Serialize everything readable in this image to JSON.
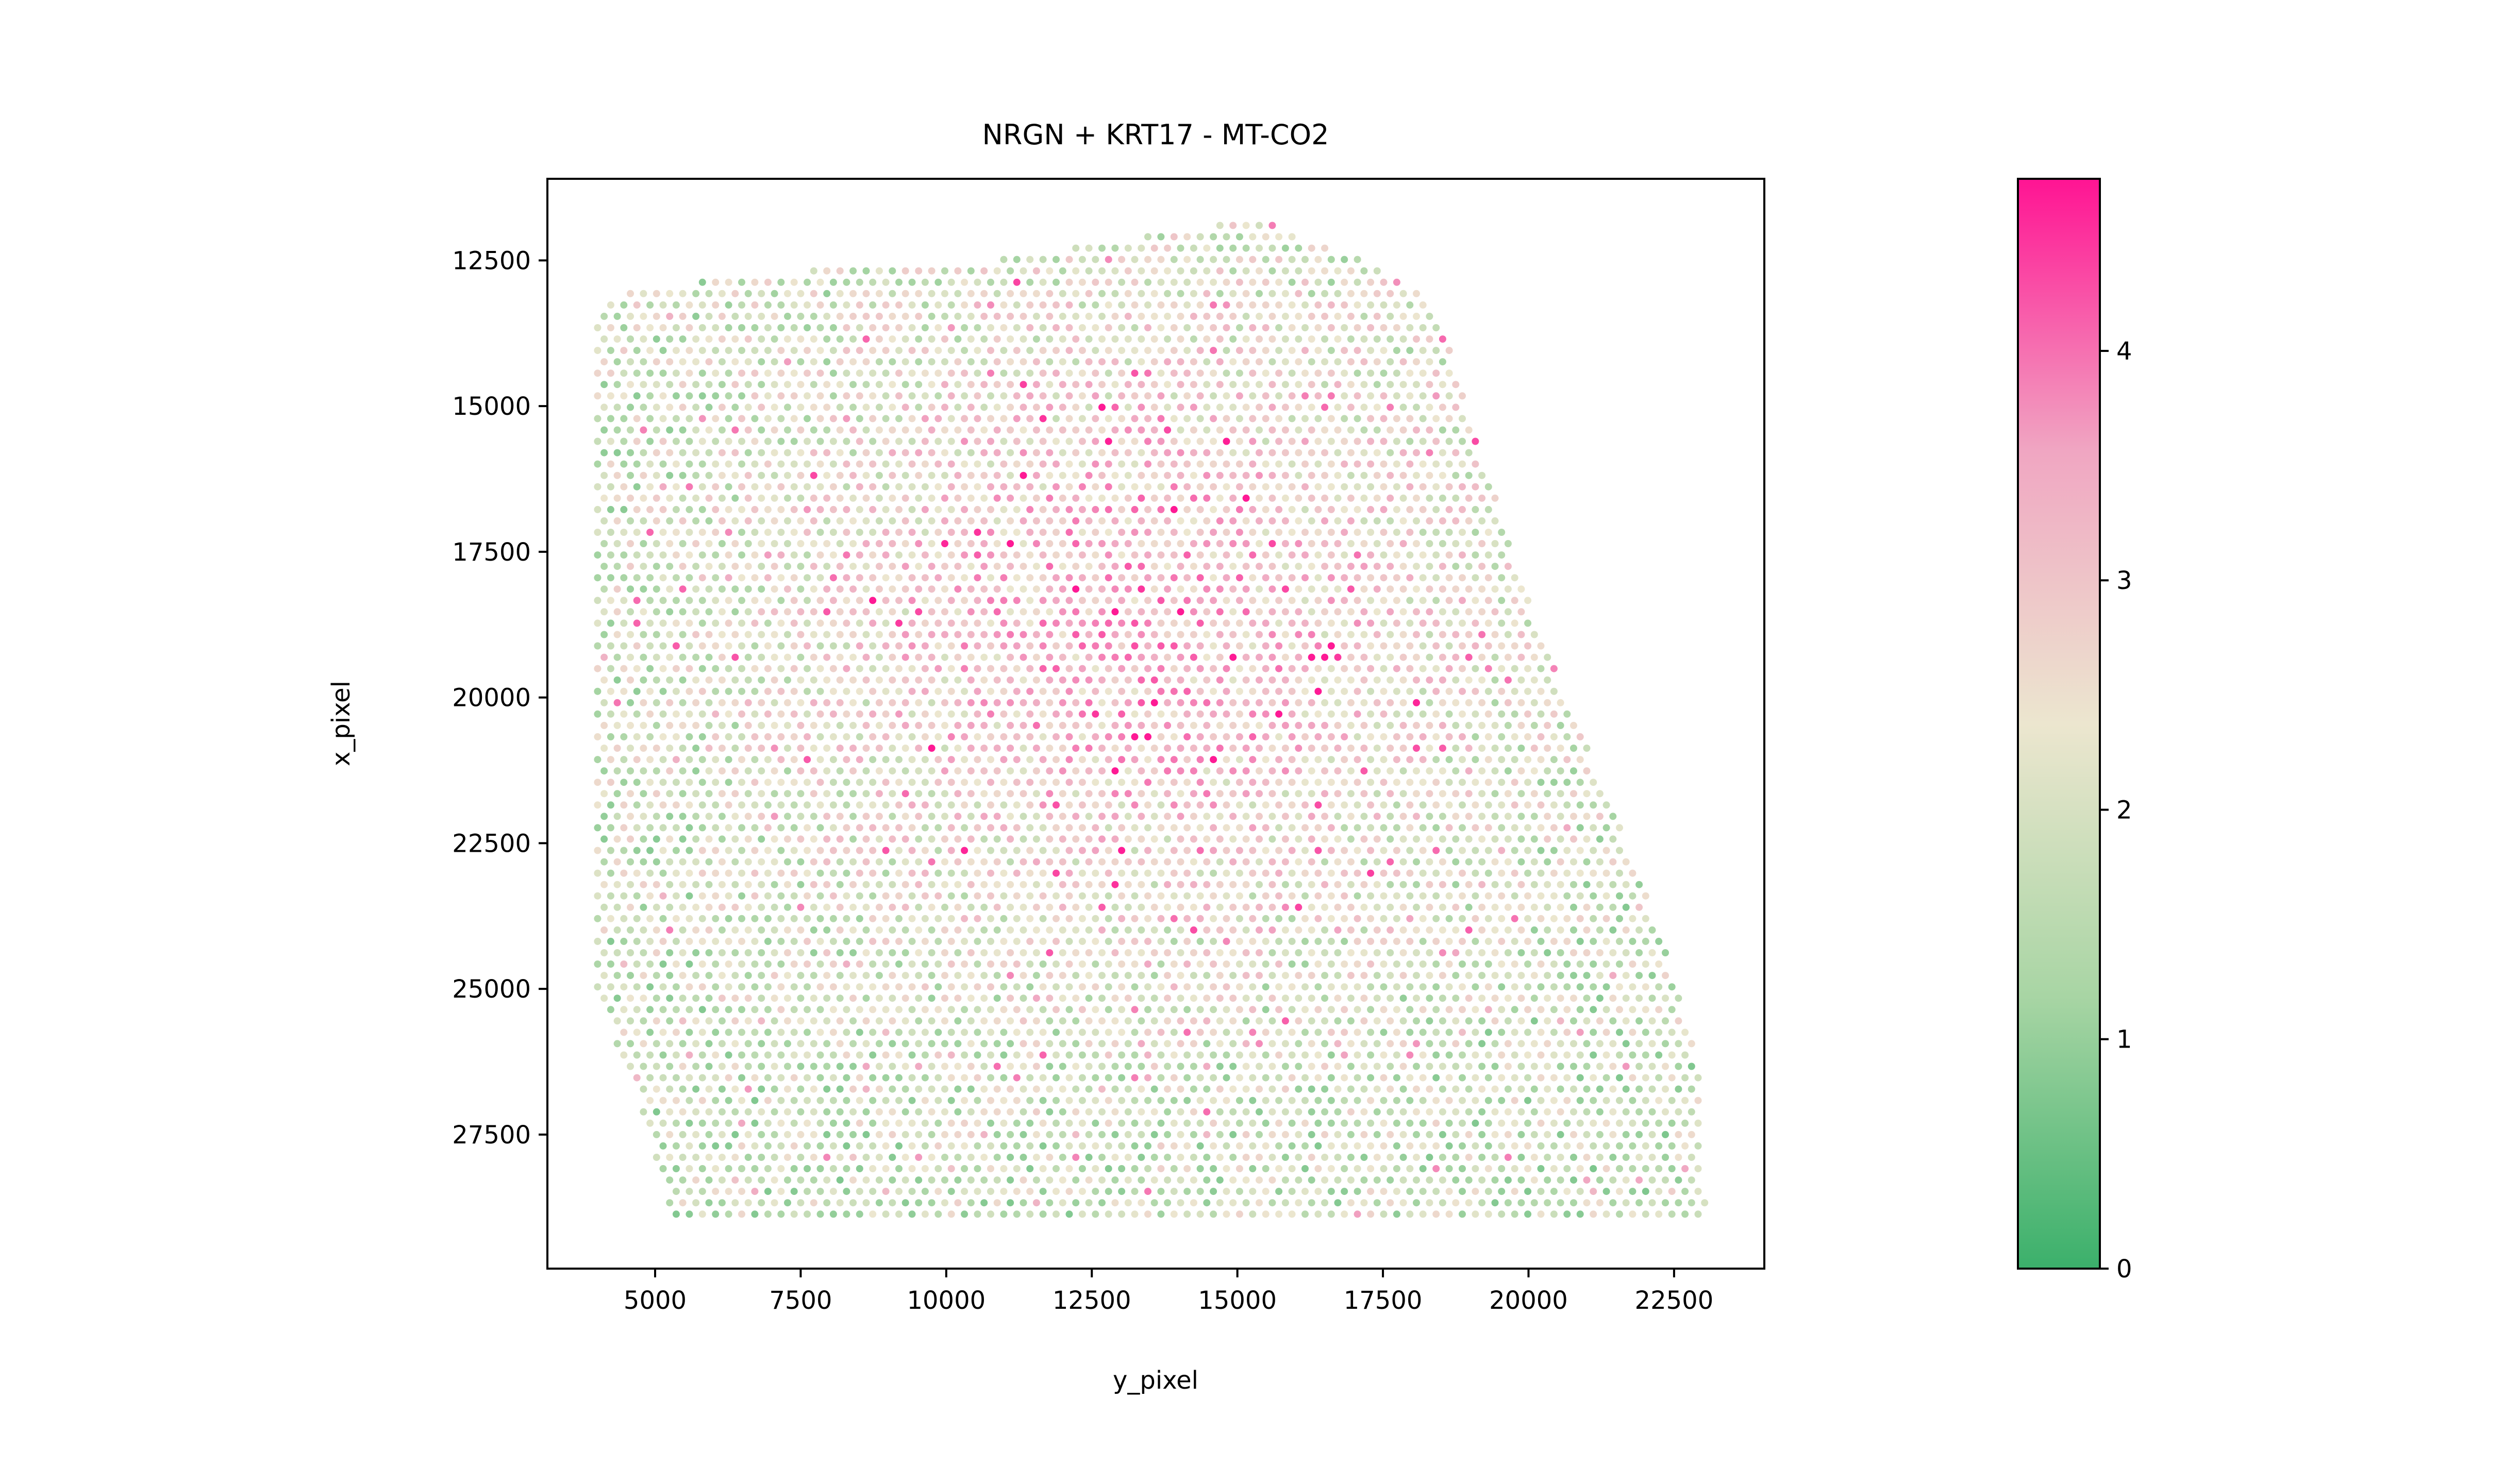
{
  "chart_data": {
    "type": "scatter",
    "title": "NRGN + KRT17 - MT-CO2",
    "xlabel": "y_pixel",
    "ylabel": "x_pixel",
    "xlim": [
      3150,
      24050
    ],
    "ylim": [
      29800,
      11100
    ],
    "y_inverted": true,
    "xticks": [
      5000,
      7500,
      10000,
      12500,
      15000,
      17500,
      20000,
      22500
    ],
    "xtick_labels": [
      "5000",
      "7500",
      "10000",
      "12500",
      "15000",
      "17500",
      "20000",
      "22500"
    ],
    "yticks": [
      12500,
      15000,
      17500,
      20000,
      22500,
      25000,
      27500
    ],
    "ytick_labels": [
      "12500",
      "15000",
      "17500",
      "20000",
      "22500",
      "25000",
      "27500"
    ],
    "grid": false,
    "legend": "none",
    "colorbar": {
      "label": "",
      "vmin": 0,
      "vmax": 4.75,
      "ticks": [
        0,
        1,
        2,
        3,
        4
      ],
      "tick_labels": [
        "0",
        "1",
        "2",
        "3",
        "4"
      ],
      "colors": [
        "#3bb06b",
        "#a8d5a4",
        "#ece6cf",
        "#f0a6c2",
        "#ff1493"
      ],
      "color_stops": [
        0,
        0.25,
        0.5,
        0.75,
        1
      ]
    },
    "tissue_outline": [
      [
        4000,
        13400
      ],
      [
        4600,
        13000
      ],
      [
        7200,
        12700
      ],
      [
        10800,
        12500
      ],
      [
        14500,
        11900
      ],
      [
        15700,
        11900
      ],
      [
        17800,
        12800
      ],
      [
        18500,
        13400
      ],
      [
        19400,
        16500
      ],
      [
        20200,
        18900
      ],
      [
        21000,
        20800
      ],
      [
        22300,
        24100
      ],
      [
        22900,
        26300
      ],
      [
        23050,
        28900
      ],
      [
        5300,
        28950
      ],
      [
        4600,
        26400
      ],
      [
        4000,
        25300
      ],
      [
        3950,
        14000
      ]
    ],
    "spot_spacing_x": 225,
    "spot_spacing_y": 195,
    "value_range": [
      0,
      4.7
    ],
    "hotspot": {
      "x": 13200,
      "y": 18700,
      "value": 4.2
    }
  }
}
